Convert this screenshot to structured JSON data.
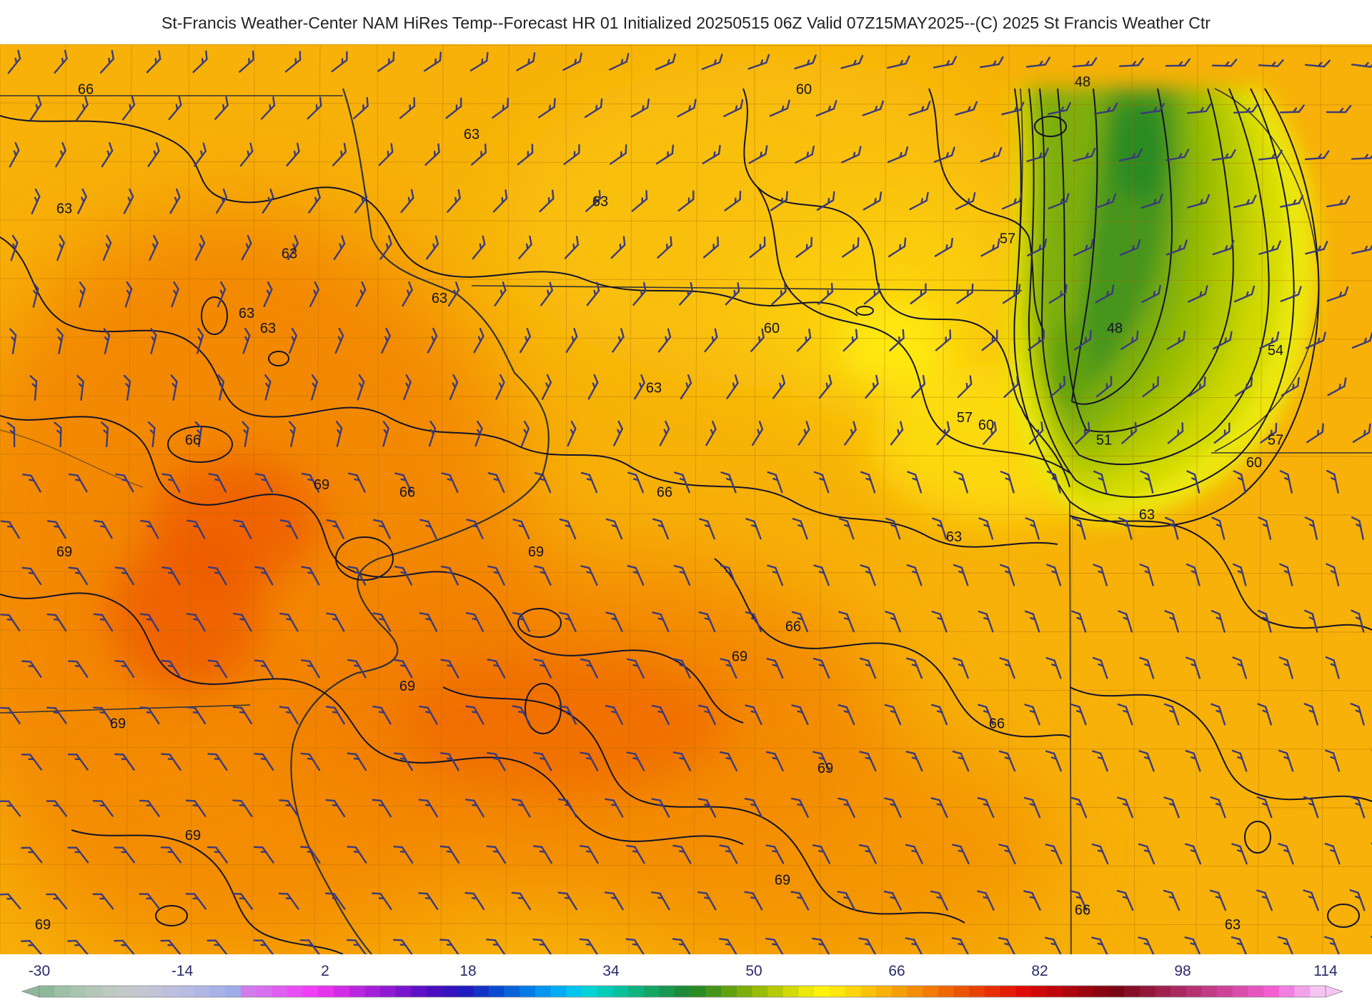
{
  "title": "St-Francis Weather-Center NAM HiRes Temp--Forecast HR 01 Initialized 20250515 06Z Valid 07Z15MAY2025--(C) 2025 St Francis Weather Ctr",
  "contour_labels": [
    {
      "text": "66",
      "lon": -96.2,
      "lat": 44.7
    },
    {
      "text": "63",
      "lon": -96.4,
      "lat": 43.9
    },
    {
      "text": "63",
      "lon": -94.3,
      "lat": 43.6
    },
    {
      "text": "63",
      "lon": -92.6,
      "lat": 44.4
    },
    {
      "text": "63",
      "lon": -91.4,
      "lat": 43.95
    },
    {
      "text": "63",
      "lon": -92.9,
      "lat": 43.3
    },
    {
      "text": "63",
      "lon": -94.7,
      "lat": 43.2
    },
    {
      "text": "63",
      "lon": -94.5,
      "lat": 43.1
    },
    {
      "text": "60",
      "lon": -89.5,
      "lat": 44.7
    },
    {
      "text": "57",
      "lon": -87.6,
      "lat": 43.7
    },
    {
      "text": "60",
      "lon": -89.8,
      "lat": 43.1
    },
    {
      "text": "63",
      "lon": -90.9,
      "lat": 42.7
    },
    {
      "text": "57",
      "lon": -88.0,
      "lat": 42.5
    },
    {
      "text": "60",
      "lon": -87.8,
      "lat": 42.45
    },
    {
      "text": "48",
      "lon": -86.9,
      "lat": 44.75
    },
    {
      "text": "48",
      "lon": -86.6,
      "lat": 43.1
    },
    {
      "text": "54",
      "lon": -85.1,
      "lat": 42.95
    },
    {
      "text": "51",
      "lon": -86.7,
      "lat": 42.35
    },
    {
      "text": "57",
      "lon": -85.1,
      "lat": 42.35
    },
    {
      "text": "60",
      "lon": -85.3,
      "lat": 42.2
    },
    {
      "text": "63",
      "lon": -86.3,
      "lat": 41.85
    },
    {
      "text": "63",
      "lon": -88.1,
      "lat": 41.7
    },
    {
      "text": "66",
      "lon": -95.2,
      "lat": 42.35
    },
    {
      "text": "69",
      "lon": -94.0,
      "lat": 42.05
    },
    {
      "text": "66",
      "lon": -93.2,
      "lat": 42.0
    },
    {
      "text": "66",
      "lon": -90.8,
      "lat": 42.0
    },
    {
      "text": "69",
      "lon": -96.4,
      "lat": 41.6
    },
    {
      "text": "69",
      "lon": -92.0,
      "lat": 41.6
    },
    {
      "text": "66",
      "lon": -89.6,
      "lat": 41.1
    },
    {
      "text": "69",
      "lon": -90.1,
      "lat": 40.9
    },
    {
      "text": "69",
      "lon": -93.2,
      "lat": 40.7
    },
    {
      "text": "69",
      "lon": -95.9,
      "lat": 40.45
    },
    {
      "text": "66",
      "lon": -87.7,
      "lat": 40.45
    },
    {
      "text": "69",
      "lon": -89.3,
      "lat": 40.15
    },
    {
      "text": "69",
      "lon": -95.2,
      "lat": 39.7
    },
    {
      "text": "69",
      "lon": -89.7,
      "lat": 39.4
    },
    {
      "text": "66",
      "lon": -86.9,
      "lat": 39.2
    },
    {
      "text": "69",
      "lon": -96.6,
      "lat": 39.1
    },
    {
      "text": "63",
      "lon": -85.5,
      "lat": 39.1
    }
  ],
  "colorbar": {
    "tick_labels": [
      "-30",
      "-14",
      "2",
      "18",
      "34",
      "50",
      "66",
      "82",
      "98",
      "114"
    ],
    "min": -30,
    "max": 114,
    "step": 2,
    "tick_color": "#2a2a6a",
    "colors": [
      "#8fb79a",
      "#9ec0a6",
      "#a9c5b0",
      "#b3c7b8",
      "#bcc9c0",
      "#c3c9c8",
      "#c6c6d0",
      "#c3c3d8",
      "#bebede",
      "#b8bbe2",
      "#b0b7e5",
      "#a7b2e8",
      "#9eacea",
      "#d07cec",
      "#d86ff0",
      "#e05ef2",
      "#e84ef4",
      "#f03ef6",
      "#e833ec",
      "#d22ce6",
      "#bc25df",
      "#a51fd9",
      "#8e1ad2",
      "#7615cc",
      "#5e10c6",
      "#4a0dc0",
      "#3512bd",
      "#1f1bc0",
      "#1232c6",
      "#0a4ad0",
      "#0863da",
      "#057ce5",
      "#0495ee",
      "#03adf3",
      "#03c4ef",
      "#04d3d6",
      "#05cbb9",
      "#09c09c",
      "#0eb380",
      "#13a566",
      "#18974e",
      "#1d8a3a",
      "#2a8b23",
      "#46951a",
      "#61a110",
      "#7dae09",
      "#99bc05",
      "#b5ca04",
      "#d1d906",
      "#ece809",
      "#fff20d",
      "#fde70c",
      "#fbd50a",
      "#f9c309",
      "#f7b108",
      "#f59f07",
      "#f38d06",
      "#f17b05",
      "#ef6805",
      "#ec5504",
      "#ea4104",
      "#e72e04",
      "#e41b05",
      "#df0b07",
      "#cf0709",
      "#bf050b",
      "#ae040d",
      "#9c030f",
      "#8a0311",
      "#7a0613",
      "#860f27",
      "#92173a",
      "#9e204d",
      "#aa2960",
      "#b63273",
      "#c23b86",
      "#ce4399",
      "#da4cac",
      "#e655bf",
      "#f25ed2",
      "#f07fe2",
      "#f3a2ea",
      "#f6c4f2"
    ]
  }
}
